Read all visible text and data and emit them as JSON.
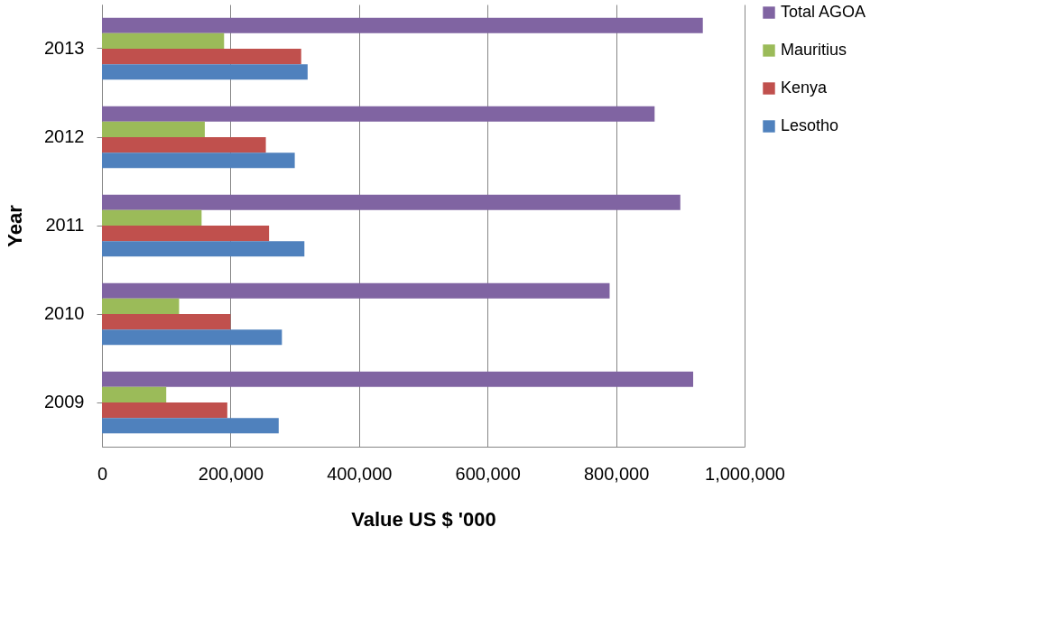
{
  "chart_data": {
    "type": "bar",
    "orientation": "horizontal",
    "xlabel": "Value US $ '000",
    "ylabel": "Year",
    "categories": [
      "2013",
      "2012",
      "2011",
      "2010",
      "2009"
    ],
    "series": [
      {
        "name": "Total AGOA",
        "color": "#8064a2",
        "values": [
          935000,
          860000,
          900000,
          790000,
          920000
        ]
      },
      {
        "name": "Mauritius",
        "color": "#9bbb59",
        "values": [
          190000,
          160000,
          155000,
          120000,
          100000
        ]
      },
      {
        "name": "Kenya",
        "color": "#c0504d",
        "values": [
          310000,
          255000,
          260000,
          200000,
          195000
        ]
      },
      {
        "name": "Lesotho",
        "color": "#4f81bd",
        "values": [
          320000,
          300000,
          315000,
          280000,
          275000
        ]
      }
    ],
    "xlim": [
      0,
      1000000
    ],
    "xticks": [
      {
        "value": 0,
        "label": "0"
      },
      {
        "value": 200000,
        "label": "200,000"
      },
      {
        "value": 400000,
        "label": "400,000"
      },
      {
        "value": 600000,
        "label": "600,000"
      },
      {
        "value": 800000,
        "label": "800,000"
      },
      {
        "value": 1000000,
        "label": "1,000,000"
      }
    ],
    "grid": "x",
    "legend": "right"
  }
}
